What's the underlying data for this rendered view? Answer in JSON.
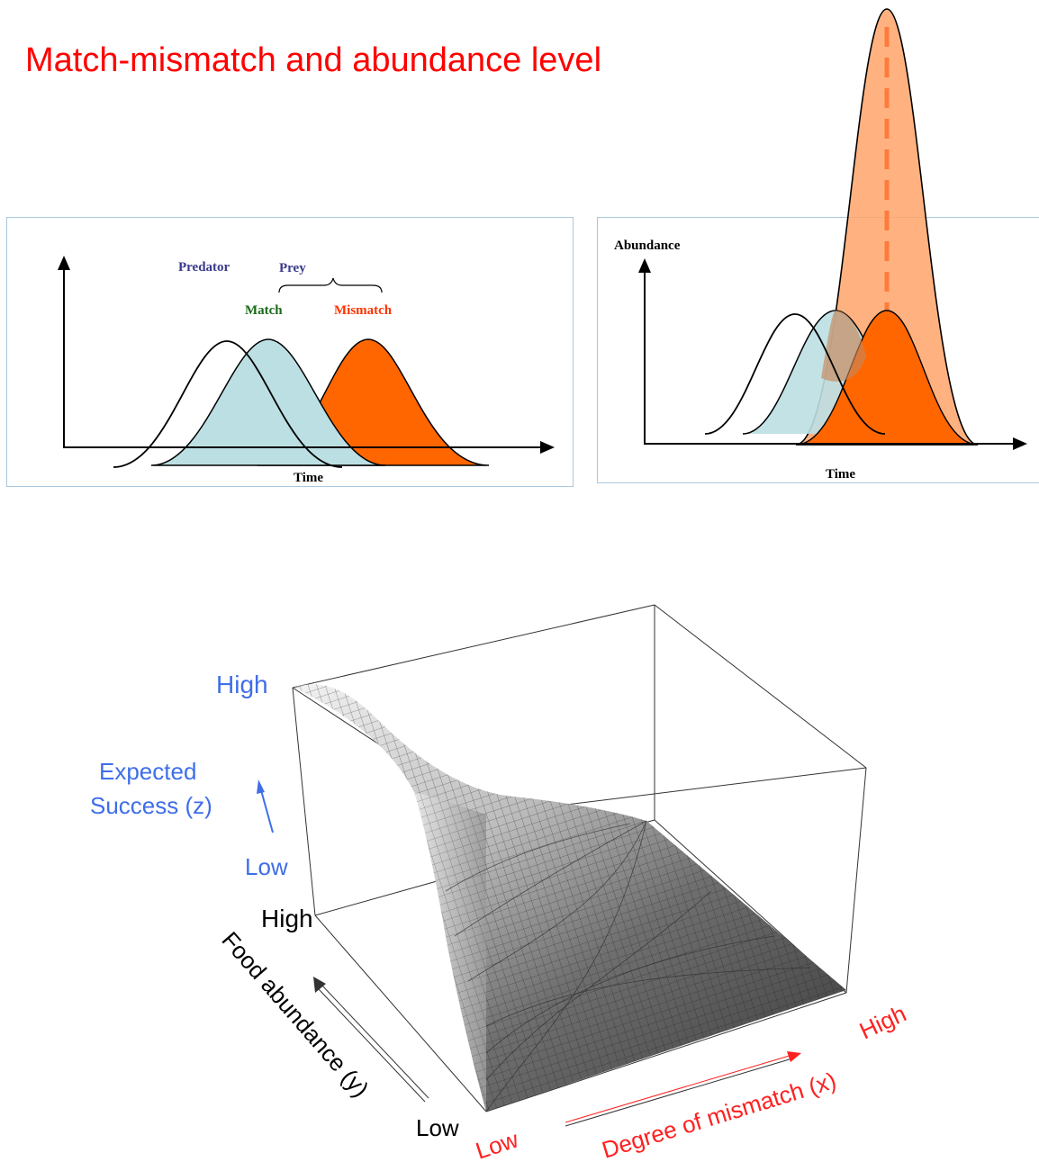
{
  "title": "Match-mismatch and abundance level",
  "left_panel": {
    "predator_label": "Predator",
    "prey_label": "Prey",
    "match_label": "Match",
    "mismatch_label": "Mismatch",
    "time_label": "Time"
  },
  "right_panel": {
    "abundance_label": "Abundance",
    "time_label": "Time"
  },
  "surface_plot": {
    "z_high": "High",
    "z_label_line1": "Expected",
    "z_label_line2": "Success (z)",
    "z_low": "Low",
    "y_high": "High",
    "y_label": "Food abundance (y)",
    "y_low": "Low",
    "x_low": "Low",
    "x_label": "Degree of mismatch (x)",
    "x_high": "High"
  },
  "colors": {
    "title": "#ff0000",
    "predator_text": "#3a3a8c",
    "match_text": "#1a6b1a",
    "mismatch_text": "#ff3300",
    "prey_fill": "#bcdfe3",
    "mismatch_fill": "#ff6600",
    "tall_peak_fill": "#ffb080",
    "dashed_line": "#ff7a3d",
    "z_axis_text": "#3f6ee8",
    "x_axis_text": "#ff2020"
  }
}
